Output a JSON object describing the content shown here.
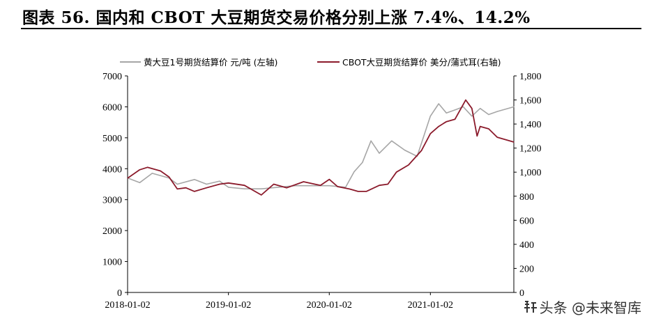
{
  "title": "图表 56. 国内和 CBOT 大豆期货交易价格分别上涨 7.4%、14.2%",
  "watermark": "头条 @未来智库",
  "colors": {
    "domestic": "#a6a6a6",
    "cbot": "#8b1a2b",
    "axis": "#000000"
  },
  "chart_data": {
    "type": "line",
    "x_ticks": [
      "2018-01-02",
      "2019-01-02",
      "2020-01-02",
      "2021-01-02"
    ],
    "x_range": [
      "2018-01-02",
      "2021-10-31"
    ],
    "y_left": {
      "ticks": [
        "0",
        "1000",
        "2000",
        "3000",
        "4000",
        "5000",
        "6000",
        "7000"
      ],
      "min": 0,
      "max": 7000
    },
    "y_right": {
      "ticks": [
        "0",
        "200",
        "400",
        "600",
        "800",
        "1,000",
        "1,200",
        "1,400",
        "1,600",
        "1,800"
      ],
      "min": 0,
      "max": 1800
    },
    "legend_position": "top",
    "series": [
      {
        "name": "黄大豆1号期货结算价 元/吨 (左轴)",
        "axis": "left",
        "color": "#a6a6a6",
        "points": [
          [
            "2018-01-02",
            3700
          ],
          [
            "2018-02-15",
            3550
          ],
          [
            "2018-04-01",
            3850
          ],
          [
            "2018-06-01",
            3700
          ],
          [
            "2018-07-01",
            3500
          ],
          [
            "2018-09-01",
            3650
          ],
          [
            "2018-10-15",
            3500
          ],
          [
            "2018-12-01",
            3600
          ],
          [
            "2019-01-02",
            3400
          ],
          [
            "2019-03-01",
            3350
          ],
          [
            "2019-05-01",
            3350
          ],
          [
            "2019-07-01",
            3400
          ],
          [
            "2019-09-01",
            3450
          ],
          [
            "2019-11-01",
            3450
          ],
          [
            "2020-01-02",
            3450
          ],
          [
            "2020-03-01",
            3400
          ],
          [
            "2020-04-01",
            3900
          ],
          [
            "2020-05-01",
            4200
          ],
          [
            "2020-06-01",
            4900
          ],
          [
            "2020-07-01",
            4500
          ],
          [
            "2020-08-15",
            4900
          ],
          [
            "2020-10-01",
            4600
          ],
          [
            "2020-11-15",
            4400
          ],
          [
            "2021-01-02",
            5700
          ],
          [
            "2021-02-01",
            6100
          ],
          [
            "2021-03-01",
            5800
          ],
          [
            "2021-04-01",
            5900
          ],
          [
            "2021-05-01",
            6000
          ],
          [
            "2021-06-01",
            5700
          ],
          [
            "2021-07-01",
            5950
          ],
          [
            "2021-08-01",
            5750
          ],
          [
            "2021-09-01",
            5850
          ],
          [
            "2021-10-31",
            6000
          ]
        ]
      },
      {
        "name": "CBOT大豆期货结算价 美分/蒲式耳(右轴)",
        "axis": "right",
        "color": "#8b1a2b",
        "points": [
          [
            "2018-01-02",
            950
          ],
          [
            "2018-02-15",
            1020
          ],
          [
            "2018-03-15",
            1040
          ],
          [
            "2018-05-01",
            1010
          ],
          [
            "2018-06-01",
            960
          ],
          [
            "2018-07-01",
            860
          ],
          [
            "2018-08-01",
            870
          ],
          [
            "2018-09-01",
            840
          ],
          [
            "2018-10-15",
            870
          ],
          [
            "2018-12-01",
            900
          ],
          [
            "2019-01-02",
            910
          ],
          [
            "2019-03-01",
            890
          ],
          [
            "2019-05-01",
            810
          ],
          [
            "2019-06-15",
            900
          ],
          [
            "2019-08-01",
            870
          ],
          [
            "2019-10-01",
            920
          ],
          [
            "2019-12-01",
            890
          ],
          [
            "2020-01-02",
            940
          ],
          [
            "2020-02-01",
            880
          ],
          [
            "2020-03-15",
            860
          ],
          [
            "2020-04-15",
            840
          ],
          [
            "2020-05-15",
            840
          ],
          [
            "2020-07-01",
            890
          ],
          [
            "2020-08-01",
            900
          ],
          [
            "2020-09-01",
            1000
          ],
          [
            "2020-10-15",
            1060
          ],
          [
            "2020-12-01",
            1180
          ],
          [
            "2021-01-02",
            1320
          ],
          [
            "2021-02-01",
            1380
          ],
          [
            "2021-03-01",
            1420
          ],
          [
            "2021-04-01",
            1440
          ],
          [
            "2021-05-10",
            1600
          ],
          [
            "2021-06-01",
            1530
          ],
          [
            "2021-06-20",
            1300
          ],
          [
            "2021-07-01",
            1380
          ],
          [
            "2021-08-01",
            1360
          ],
          [
            "2021-09-01",
            1290
          ],
          [
            "2021-10-31",
            1250
          ]
        ]
      }
    ]
  }
}
